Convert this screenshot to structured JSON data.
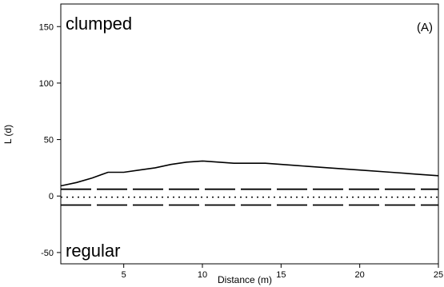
{
  "chart_data": {
    "type": "line",
    "panel_label": "(A)",
    "title": "",
    "xlabel": "Distance (m)",
    "ylabel": "L (d)",
    "xlim": [
      1,
      25
    ],
    "ylim": [
      -60,
      170
    ],
    "xticks": [
      5,
      10,
      15,
      20,
      25
    ],
    "yticks": [
      -50,
      0,
      50,
      100,
      150
    ],
    "annotations": [
      {
        "text": "clumped",
        "position": "top-left"
      },
      {
        "text": "regular",
        "position": "bottom-left"
      }
    ],
    "grid": false,
    "legend": "none",
    "series": [
      {
        "style": "solid",
        "x": [
          1,
          2,
          3,
          4,
          5,
          6,
          7,
          8,
          9,
          10,
          12,
          14,
          16,
          18,
          20,
          22,
          24,
          25
        ],
        "y": [
          9,
          12,
          16,
          21,
          21,
          23,
          25,
          28,
          30,
          31,
          29,
          29,
          27,
          25,
          23,
          21,
          19,
          18
        ]
      },
      {
        "style": "dashed",
        "x": [
          1,
          25
        ],
        "y": [
          6,
          6
        ]
      },
      {
        "style": "dotted",
        "x": [
          1,
          25
        ],
        "y": [
          -1,
          -1
        ]
      },
      {
        "style": "dashed",
        "x": [
          1,
          25
        ],
        "y": [
          -8,
          -8
        ]
      }
    ],
    "colors": {
      "line": "#000000",
      "axis": "#000000",
      "background": "#ffffff"
    }
  }
}
